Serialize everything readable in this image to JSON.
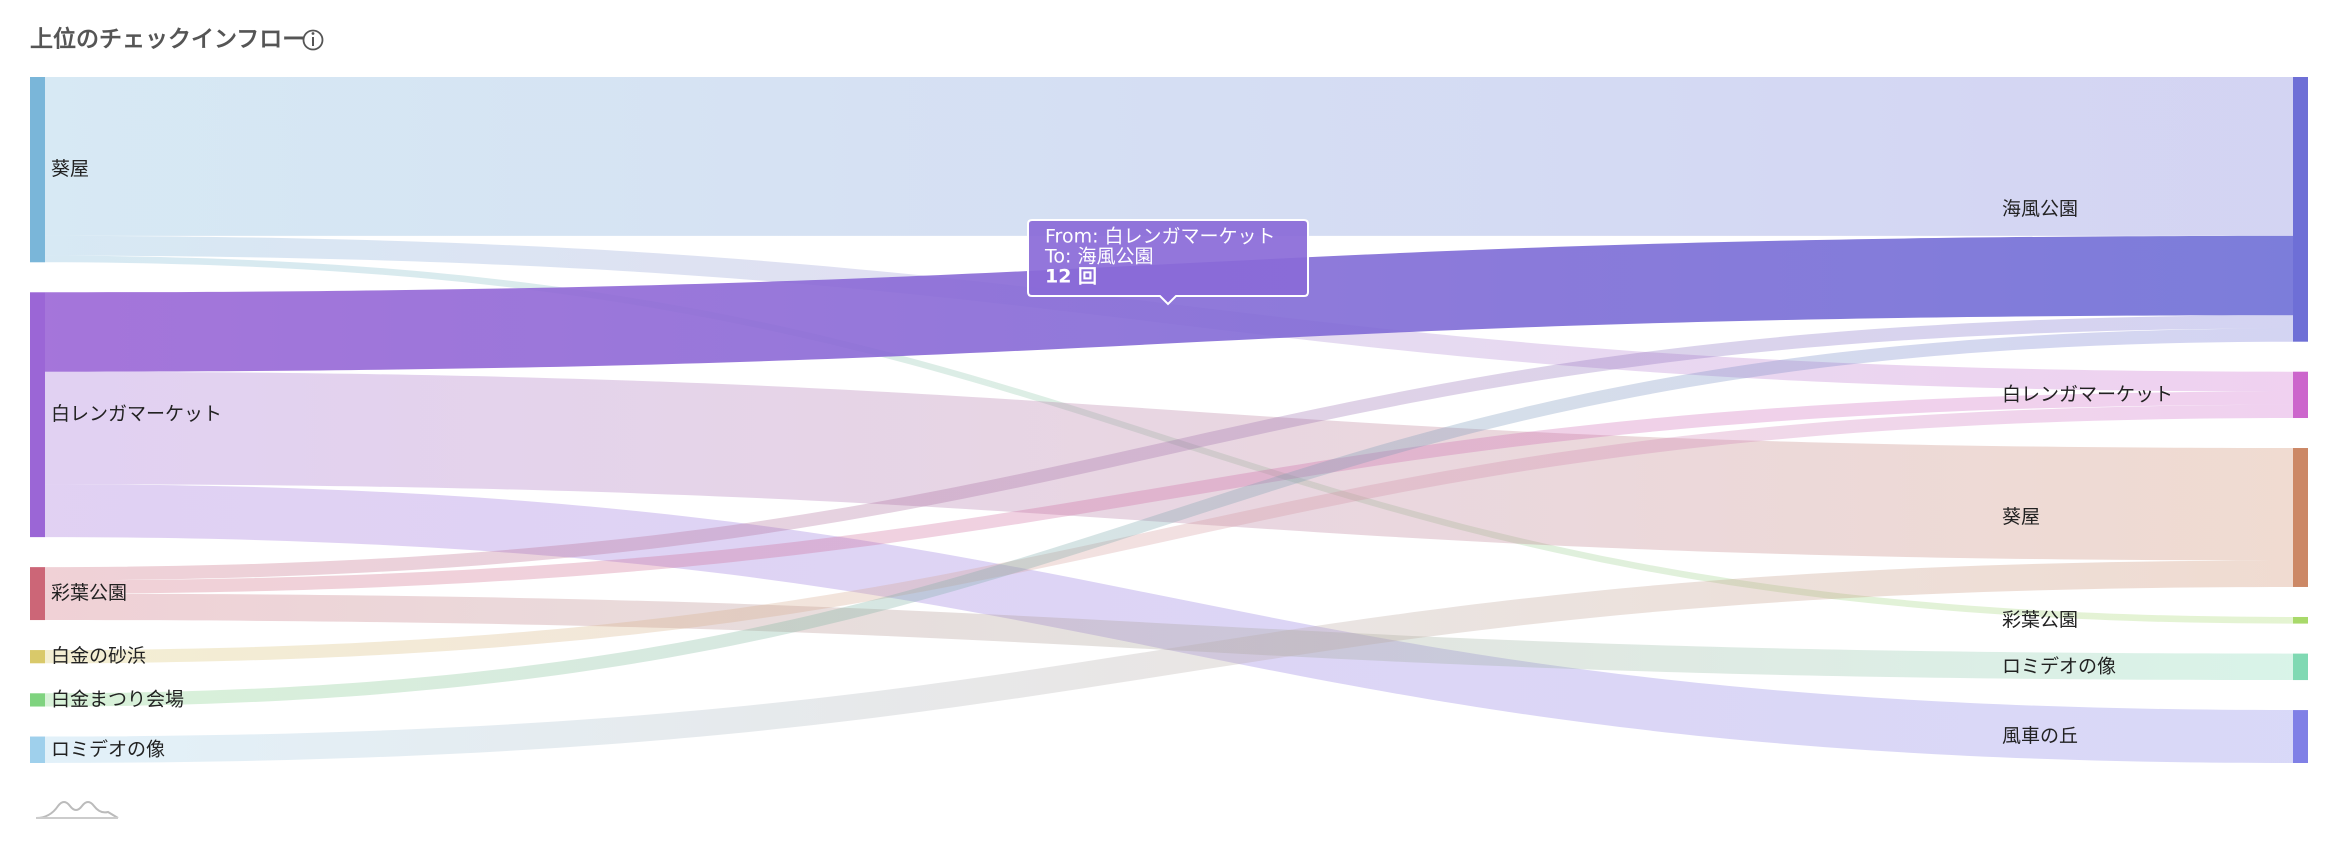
{
  "chart_data": {
    "type": "sankey",
    "title": "上位のチェックインフロー",
    "sources": [
      {
        "name": "葵屋",
        "color": "#7ab6d9"
      },
      {
        "name": "白レンガマーケット",
        "color": "#9b66d6"
      },
      {
        "name": "彩葉公園",
        "color": "#cc6677"
      },
      {
        "name": "白金の砂浜",
        "color": "#d9c96a"
      },
      {
        "name": "白金まつり会場",
        "color": "#7fd37f"
      },
      {
        "name": "ロミデオの像",
        "color": "#9fd0ec"
      }
    ],
    "targets": [
      {
        "name": "海風公園",
        "color": "#6e6fd6"
      },
      {
        "name": "白レンガマーケット",
        "color": "#cc66cc"
      },
      {
        "name": "葵屋",
        "color": "#cc8866"
      },
      {
        "name": "彩葉公園",
        "color": "#a8d96a"
      },
      {
        "name": "ロミデオの像",
        "color": "#80d9b3"
      },
      {
        "name": "風車の丘",
        "color": "#8080e6"
      }
    ],
    "links": [
      {
        "source": 0,
        "target": 0,
        "value": 24
      },
      {
        "source": 0,
        "target": 1,
        "value": 3
      },
      {
        "source": 0,
        "target": 3,
        "value": 1
      },
      {
        "source": 1,
        "target": 0,
        "value": 12
      },
      {
        "source": 1,
        "target": 2,
        "value": 17
      },
      {
        "source": 1,
        "target": 5,
        "value": 8
      },
      {
        "source": 2,
        "target": 0,
        "value": 2
      },
      {
        "source": 2,
        "target": 1,
        "value": 2
      },
      {
        "source": 2,
        "target": 4,
        "value": 4
      },
      {
        "source": 3,
        "target": 1,
        "value": 2
      },
      {
        "source": 4,
        "target": 0,
        "value": 2
      },
      {
        "source": 5,
        "target": 2,
        "value": 4
      }
    ],
    "highlighted_link": 3,
    "tooltip": {
      "lines": [
        "From: 白レンガマーケット",
        "To: 海風公園"
      ],
      "value_label": "12 回"
    }
  }
}
